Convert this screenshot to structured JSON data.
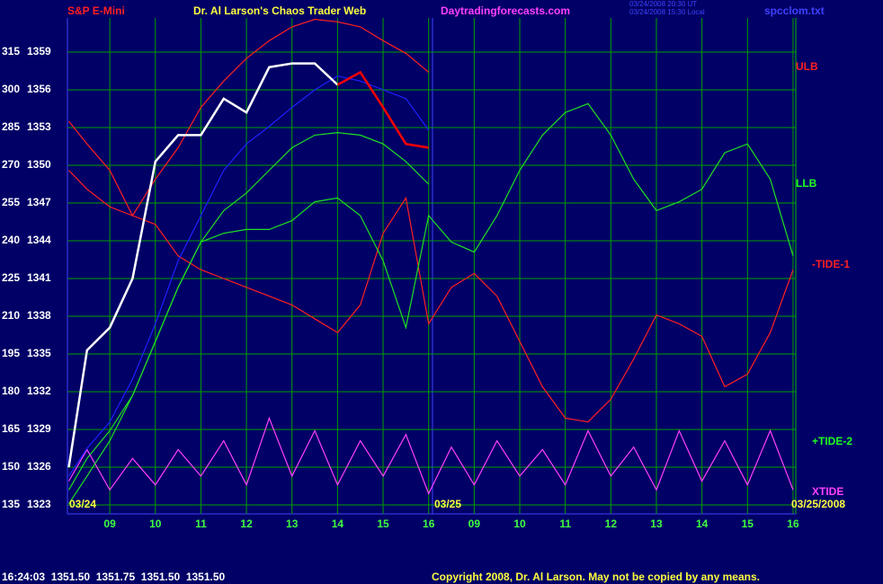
{
  "chart_data": {
    "type": "line",
    "title": "S&P E-Mini",
    "subtitle": "Dr. Al Larson's Chaos Trader Web",
    "site": "Daytradingforecasts.com",
    "timestamps": [
      "03/24/2008 20:30 UT",
      "03/24/2008 15:30 Local"
    ],
    "file": "spcclom.txt",
    "status": "16:24:03  1351.50  1351.75  1351.50  1351.50",
    "copyright": "Copyright 2008, Dr. Al Larson. May not be copied by any means.",
    "dates": [
      "03/24",
      "03/25",
      "03/25/2008"
    ],
    "annotations": [
      {
        "text": "ULB",
        "color": "#ff2020"
      },
      {
        "text": "LLB",
        "color": "#20ff20"
      },
      {
        "text": "-TIDE-1",
        "color": "#ff2020"
      },
      {
        "text": "+TIDE-2",
        "color": "#20ff20"
      },
      {
        "text": "XTIDE",
        "color": "#ff40ff"
      }
    ],
    "grid": true,
    "xlim": [
      -0.93,
      15.06
    ],
    "xticks": [
      {
        "value": 0,
        "label": "09"
      },
      {
        "value": 1,
        "label": "10"
      },
      {
        "value": 2,
        "label": "11"
      },
      {
        "value": 3,
        "label": "12"
      },
      {
        "value": 4,
        "label": "13"
      },
      {
        "value": 5,
        "label": "14"
      },
      {
        "value": 6,
        "label": "15"
      },
      {
        "value": 7,
        "label": "16"
      },
      {
        "value": 8,
        "label": "09"
      },
      {
        "value": 9,
        "label": "10"
      },
      {
        "value": 10,
        "label": "11"
      },
      {
        "value": 11,
        "label": "12"
      },
      {
        "value": 12,
        "label": "13"
      },
      {
        "value": 13,
        "label": "14"
      },
      {
        "value": 14,
        "label": "15"
      },
      {
        "value": 15,
        "label": "16"
      }
    ],
    "ylim": [
      1322.29,
      1361.71
    ],
    "yticks": [
      1323,
      1326,
      1329,
      1332,
      1335,
      1338,
      1341,
      1344,
      1347,
      1350,
      1353,
      1356,
      1359
    ],
    "y2lim": [
      131.43,
      328.57
    ],
    "y2ticks": [
      135,
      150,
      165,
      180,
      195,
      210,
      225,
      240,
      255,
      270,
      285,
      300,
      315
    ],
    "x": [
      -0.9,
      -0.5,
      0,
      0.5,
      1,
      1.5,
      2,
      2.5,
      3,
      3.5,
      4,
      4.5,
      5,
      5.5,
      6,
      6.5,
      7,
      7.5,
      8,
      8.5,
      9,
      9.5,
      10,
      10.5,
      11,
      11.5,
      12,
      12.5,
      13,
      13.5,
      14,
      14.5,
      15
    ],
    "series": [
      {
        "color": "#ff2020",
        "values": [
          1349.6,
          1348.1,
          1346.7,
          1346,
          1345.3,
          1342.8,
          1341.7,
          1341,
          1340.3,
          1339.6,
          1338.9,
          1337.8,
          1336.7,
          1338.9,
          1344.6,
          1347.4,
          1337.4,
          1340.3,
          1341.4,
          1339.6,
          1336,
          1332.4,
          1329.9,
          1329.6,
          1331.4,
          1334.6,
          1338.1,
          1337.4,
          1336.4,
          1332.4,
          1333.4,
          1336.7,
          1341.7
        ]
      },
      {
        "color": "#20e020",
        "values": [
          1324.2,
          1326.7,
          1328.9,
          1331.7,
          1336,
          1340.3,
          1343.9,
          1344.6,
          1344.9,
          1344.9,
          1345.6,
          1347.1,
          1347.4,
          1346,
          1342.4,
          1337.1,
          1346,
          1343.9,
          1343.1,
          1346,
          1349.6,
          1352.4,
          1354.2,
          1354.9,
          1352.4,
          1348.9,
          1346.4,
          1347.1,
          1348.1,
          1351,
          1351.7,
          1348.9,
          1342.8
        ]
      },
      {
        "color": "#ff40ff",
        "values": [
          1324.9,
          1327.4,
          1324.2,
          1326.7,
          1324.6,
          1327.4,
          1325.3,
          1328.1,
          1324.6,
          1329.9,
          1325.3,
          1328.9,
          1324.6,
          1328.1,
          1325.3,
          1328.6,
          1323.9,
          1327.6,
          1324.6,
          1328.1,
          1325.3,
          1327.4,
          1324.6,
          1328.9,
          1325.3,
          1327.6,
          1324.2,
          1328.9,
          1324.9,
          1328.1,
          1324.6,
          1328.9,
          1324.2
        ]
      },
      {
        "color": "#ff2020",
        "values": [
          1353.5,
          1351.7,
          1349.6,
          1346,
          1348.9,
          1351.4,
          1354.6,
          1356.7,
          1358.5,
          1359.9,
          1361,
          1361.6,
          1361.4,
          1361,
          1359.9,
          1358.9,
          1357.4,
          null,
          null,
          null,
          null,
          null,
          null,
          null,
          null,
          null,
          null,
          null,
          null,
          null,
          null,
          null,
          null
        ]
      },
      {
        "color": "#20e020",
        "values": [
          1323.1,
          1325.3,
          1328.1,
          1331.7,
          1336,
          1340.3,
          1343.9,
          1346.4,
          1347.8,
          1349.6,
          1351.4,
          1352.4,
          1352.6,
          1352.4,
          1351.7,
          1350.3,
          1348.5,
          null,
          null,
          null,
          null,
          null,
          null,
          null,
          null,
          null,
          null,
          null,
          null,
          null,
          null,
          null,
          null
        ]
      },
      {
        "color": "#2020ff",
        "values": [
          1325.3,
          1327.5,
          1329.6,
          1333,
          1337.4,
          1342.4,
          1346,
          1349.6,
          1351.7,
          1353.1,
          1354.6,
          1356,
          1357.1,
          1356.7,
          1356,
          1355.3,
          1352.8,
          null,
          null,
          null,
          null,
          null,
          null,
          null,
          null,
          null,
          null,
          null,
          null,
          null,
          null,
          null,
          null
        ]
      },
      {
        "color": "#ffffff",
        "values": [
          1326,
          1335.3,
          1337.1,
          1341,
          1350.3,
          1352.4,
          1352.4,
          1355.3,
          1354.2,
          1357.8,
          1358.1,
          1358.1,
          1356.4,
          null,
          null,
          null,
          null,
          null,
          null,
          null,
          null,
          null,
          null,
          null,
          null,
          null,
          null,
          null,
          null,
          null,
          null,
          null,
          null
        ]
      },
      {
        "color": "#ff0000",
        "values": [
          null,
          null,
          null,
          null,
          null,
          null,
          null,
          null,
          null,
          null,
          null,
          null,
          1356.4,
          1357.4,
          1354.6,
          1351.7,
          1351.4,
          null,
          null,
          null,
          null,
          null,
          null,
          null,
          null,
          null,
          null,
          null,
          null,
          null,
          null,
          null,
          null
        ]
      }
    ]
  }
}
